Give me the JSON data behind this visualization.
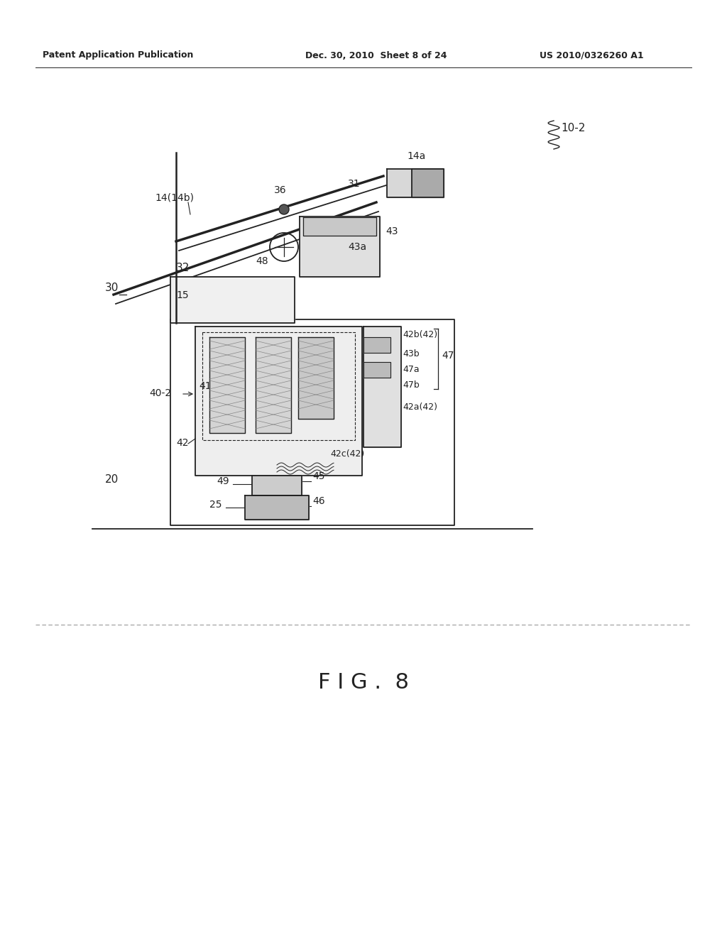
{
  "background_color": "#ffffff",
  "header_left": "Patent Application Publication",
  "header_center": "Dec. 30, 2010  Sheet 8 of 24",
  "header_right": "US 2010/0326260 A1",
  "figure_label": "F I G .  8",
  "ref_number": "10-2"
}
